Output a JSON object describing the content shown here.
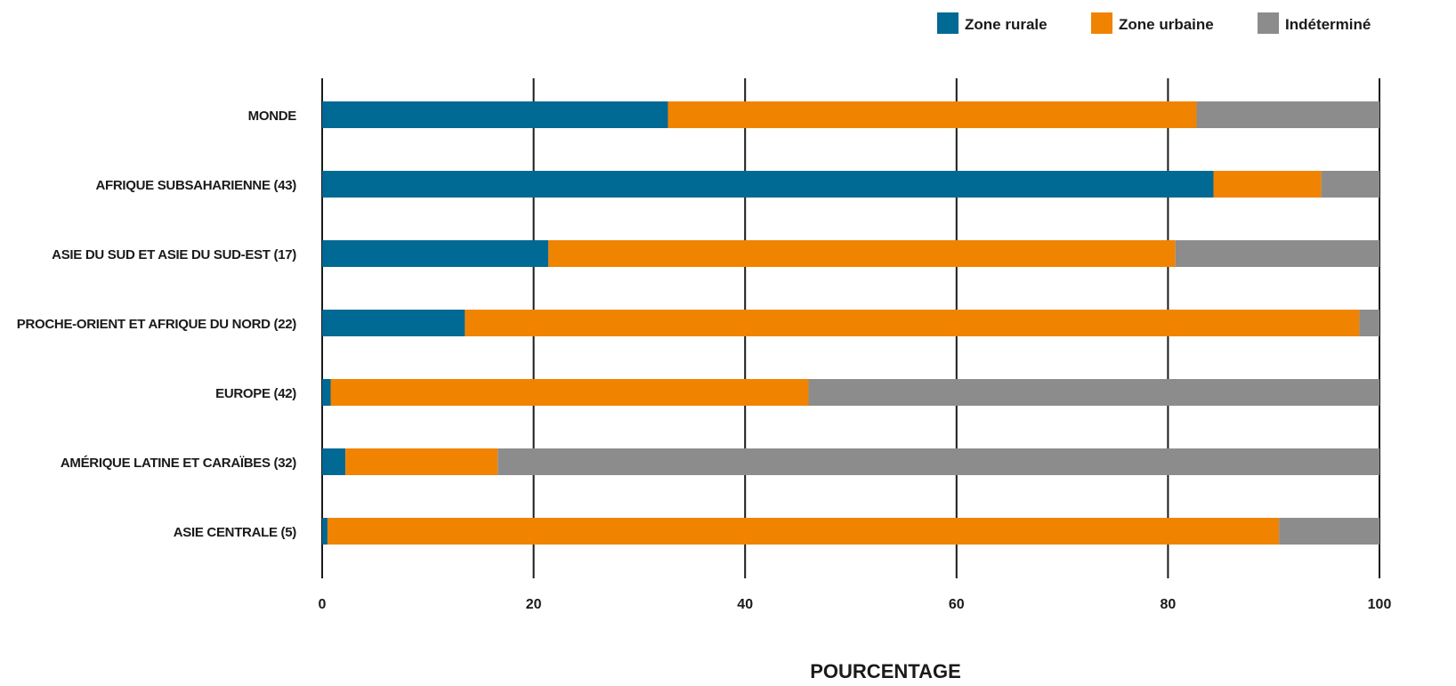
{
  "chart_data": {
    "type": "bar",
    "orientation": "horizontal",
    "stacked": true,
    "categories": [
      "MONDE",
      "AFRIQUE SUBSAHARIENNE (43)",
      "ASIE DU SUD ET ASIE DU SUD-EST (17)",
      "PROCHE-ORIENT ET AFRIQUE DU NORD (22)",
      "EUROPE (42)",
      "AMÉRIQUE LATINE ET CARAÏBES (32)",
      "ASIE CENTRALE (5)"
    ],
    "series": [
      {
        "name": "Zone rurale",
        "color": "#006994",
        "values": [
          32.7,
          84.3,
          21.4,
          13.5,
          0.8,
          2.2,
          0.5
        ]
      },
      {
        "name": "Zone urbaine",
        "color": "#F08300",
        "values": [
          50.0,
          10.2,
          59.3,
          84.6,
          45.2,
          14.4,
          90.0
        ]
      },
      {
        "name": "Indéterminé",
        "color": "#8C8C8C",
        "values": [
          17.3,
          5.5,
          19.3,
          1.9,
          54.0,
          83.4,
          9.5
        ]
      }
    ],
    "xlabel": "POURCENTAGE",
    "ylabel": "",
    "xlim": [
      0,
      100
    ],
    "xticks": [
      0,
      20,
      40,
      60,
      80,
      100
    ],
    "grid": true,
    "legend_position": "top-right"
  }
}
